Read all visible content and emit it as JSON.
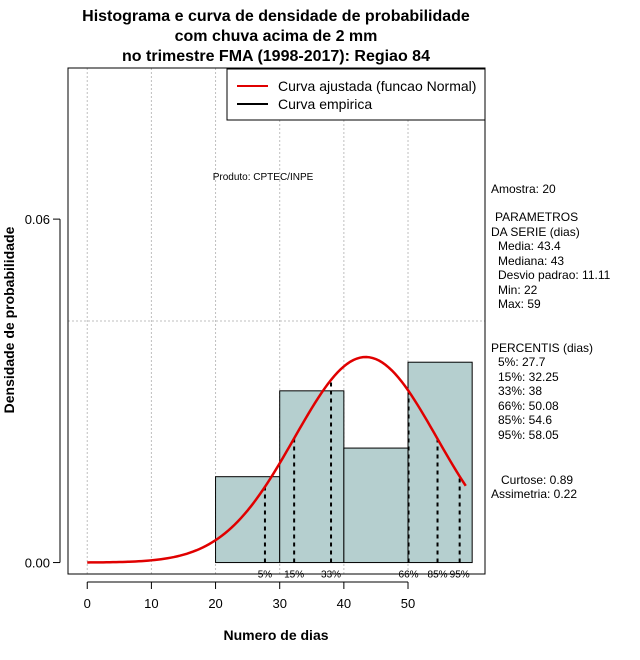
{
  "chart_data": {
    "type": "histogram",
    "title": [
      "Histograma e curva de densidade de probabilidade",
      "com chuva acima de 2 mm",
      "no trimestre FMA (1998-2017): Regiao 84"
    ],
    "xlabel": "Numero de dias",
    "ylabel": "Densidade de probabilidade",
    "xlim": [
      -3,
      62
    ],
    "ylim": [
      -0.002,
      0.0864
    ],
    "x_ticks": [
      0,
      10,
      20,
      30,
      40,
      50
    ],
    "y_ticks": [
      0.0,
      0.06
    ],
    "y_tick_labels": [
      "0.00",
      "0.06"
    ],
    "grid": true,
    "bins": [
      {
        "x0": 20,
        "x1": 30,
        "density": 0.015
      },
      {
        "x0": 30,
        "x1": 40,
        "density": 0.03
      },
      {
        "x0": 40,
        "x1": 50,
        "density": 0.02
      },
      {
        "x0": 50,
        "x1": 60,
        "density": 0.035
      }
    ],
    "bar_color": "#b5cfcf",
    "series": [
      {
        "name": "Curva ajustada (funcao Normal)",
        "color": "#e00000",
        "distribution": "normal",
        "mean": 43.4,
        "sd": 11.11,
        "x_range": [
          0,
          59
        ]
      },
      {
        "name": "Curva empirica",
        "color": "#000000"
      }
    ],
    "percentile_lines": [
      {
        "label": "5%",
        "x": 27.7
      },
      {
        "label": "15%",
        "x": 32.25
      },
      {
        "label": "33%",
        "x": 38
      },
      {
        "label": "66%",
        "x": 50.08
      },
      {
        "label": "85%",
        "x": 54.6
      },
      {
        "label": "95%",
        "x": 58.05
      }
    ],
    "legend_position": "top-right",
    "credit": "Produto: CPTEC/INPE"
  },
  "stats_panel": {
    "amostra": "Amostra: 20",
    "parametros_title_1": "PARAMETROS",
    "parametros_title_2": "DA SERIE (dias)",
    "media": "Media: 43.4",
    "mediana": "Mediana: 43",
    "desvio": "Desvio padrao: 11.11",
    "min": "Min: 22",
    "max": "Max: 59",
    "percentis_title": "PERCENTIS (dias)",
    "p5": "5%: 27.7",
    "p15": "15%: 32.25",
    "p33": "33%: 38",
    "p66": "66%: 50.08",
    "p85": "85%: 54.6",
    "p95": "95%: 58.05",
    "curtose": "Curtose: 0.89",
    "assimetria": "Assimetria: 0.22"
  }
}
